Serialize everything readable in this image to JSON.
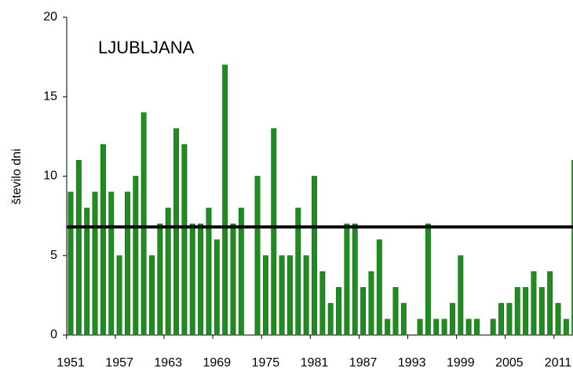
{
  "chart_data": {
    "type": "bar",
    "title": "LJUBLJANA",
    "y_label": "število dni",
    "categories": [
      "1951",
      null,
      null,
      null,
      null,
      null,
      "1957",
      null,
      null,
      null,
      null,
      null,
      "1963",
      null,
      null,
      null,
      null,
      null,
      "1969",
      null,
      null,
      null,
      null,
      null,
      "1975",
      null,
      null,
      null,
      null,
      null,
      "1981",
      null,
      null,
      null,
      null,
      null,
      "1987",
      null,
      null,
      null,
      null,
      null,
      "1993",
      null,
      null,
      null,
      null,
      null,
      "1999",
      null,
      null,
      null,
      null,
      null,
      "2005",
      null,
      null,
      null,
      null,
      null,
      "2011",
      null,
      null
    ],
    "values": [
      9,
      11,
      8,
      9,
      12,
      9,
      5,
      9,
      10,
      14,
      5,
      7,
      8,
      13,
      12,
      7,
      7,
      8,
      6,
      17,
      7,
      8,
      0,
      10,
      5,
      13,
      5,
      5,
      8,
      5,
      10,
      4,
      2,
      3,
      7,
      7,
      3,
      4,
      6,
      1,
      3,
      2,
      0,
      1,
      7,
      1,
      1,
      2,
      5,
      1,
      1,
      0,
      1,
      2,
      2,
      3,
      3,
      4,
      3,
      4,
      2,
      1,
      11
    ],
    "color": "#1e8c1e",
    "average": 6.8,
    "average_color": "#000000",
    "ylim": [
      0,
      20
    ],
    "yticks": [
      0,
      5,
      10,
      15,
      20
    ],
    "grid": false
  }
}
